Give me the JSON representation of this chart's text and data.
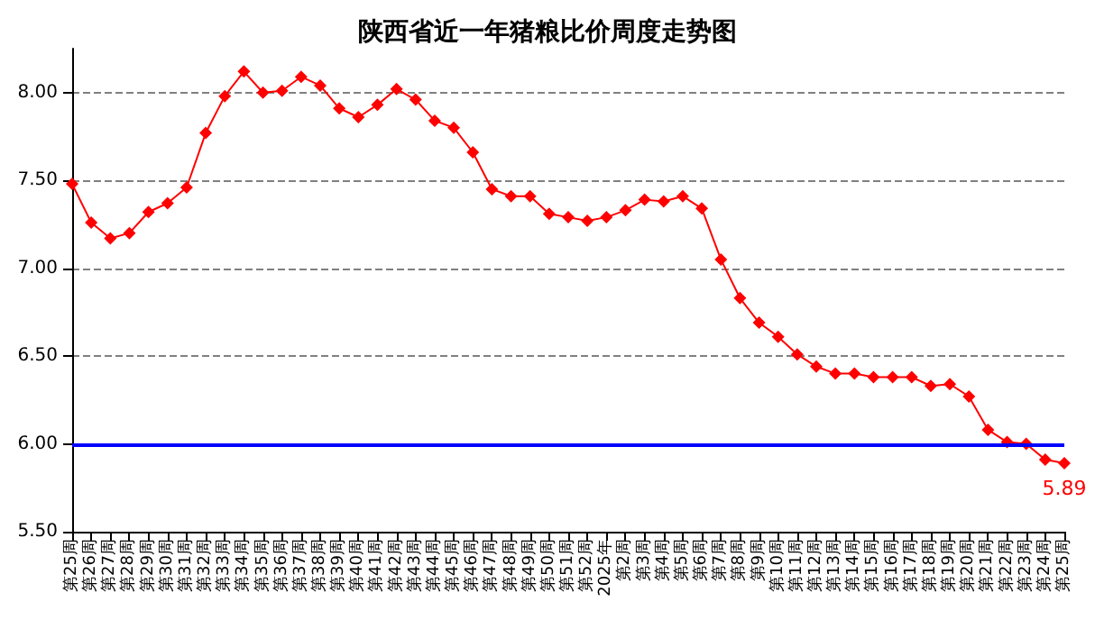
{
  "chart_data": {
    "type": "line",
    "title": "陕西省近一年猪粮比价周度走势图",
    "categories": [
      "第25周",
      "第26周",
      "第27周",
      "第28周",
      "第29周",
      "第30周",
      "第31周",
      "第32周",
      "第33周",
      "第34周",
      "第35周",
      "第36周",
      "第37周",
      "第38周",
      "第39周",
      "第40周",
      "第41周",
      "第42周",
      "第43周",
      "第44周",
      "第45周",
      "第46周",
      "第47周",
      "第48周",
      "第49周",
      "第50周",
      "第51周",
      "第52周",
      "2025年",
      "第2周",
      "第3周",
      "第4周",
      "第5周",
      "第6周",
      "第7周",
      "第8周",
      "第9周",
      "第10周",
      "第11周",
      "第12周",
      "第13周",
      "第14周",
      "第15周",
      "第16周",
      "第17周",
      "第18周",
      "第19周",
      "第20周",
      "第21周",
      "第22周",
      "第23周",
      "第24周",
      "第25周"
    ],
    "series": [
      {
        "color": "#ff0000",
        "values": [
          7.48,
          7.26,
          7.17,
          7.2,
          7.32,
          7.37,
          7.46,
          7.77,
          7.98,
          8.12,
          8.0,
          8.01,
          8.09,
          8.04,
          7.91,
          7.86,
          7.93,
          8.02,
          7.96,
          7.84,
          7.8,
          7.66,
          7.45,
          7.41,
          7.41,
          7.31,
          7.29,
          7.27,
          7.29,
          7.33,
          7.39,
          7.38,
          7.41,
          7.34,
          7.05,
          6.83,
          6.69,
          6.61,
          6.51,
          6.44,
          6.4,
          6.4,
          6.38,
          6.38,
          6.38,
          6.33,
          6.34,
          6.27,
          6.08,
          6.01,
          6.0,
          5.91,
          5.89
        ],
        "value_labels": [
          null,
          null,
          null,
          null,
          null,
          null,
          null,
          null,
          null,
          null,
          null,
          null,
          null,
          null,
          null,
          null,
          null,
          null,
          null,
          null,
          null,
          null,
          null,
          null,
          null,
          null,
          null,
          null,
          null,
          null,
          null,
          null,
          null,
          null,
          null,
          null,
          null,
          null,
          null,
          null,
          null,
          null,
          null,
          null,
          null,
          null,
          null,
          null,
          null,
          null,
          null,
          null,
          "5.89"
        ]
      }
    ],
    "ylim": [
      5.5,
      8.25
    ],
    "yticks": [
      {
        "value": 5.5,
        "label": "5.50"
      },
      {
        "value": 6,
        "label": "6.00"
      },
      {
        "value": 6.5,
        "label": "6.50"
      },
      {
        "value": 7,
        "label": "7.00"
      },
      {
        "value": 7.5,
        "label": "7.50"
      },
      {
        "value": 8,
        "label": "8.00"
      }
    ],
    "ref_lines": [
      {
        "axis": "y",
        "value": 6,
        "color": "#0000ff"
      }
    ],
    "grid": "y",
    "marker": "diamond",
    "line_style": "solid"
  }
}
